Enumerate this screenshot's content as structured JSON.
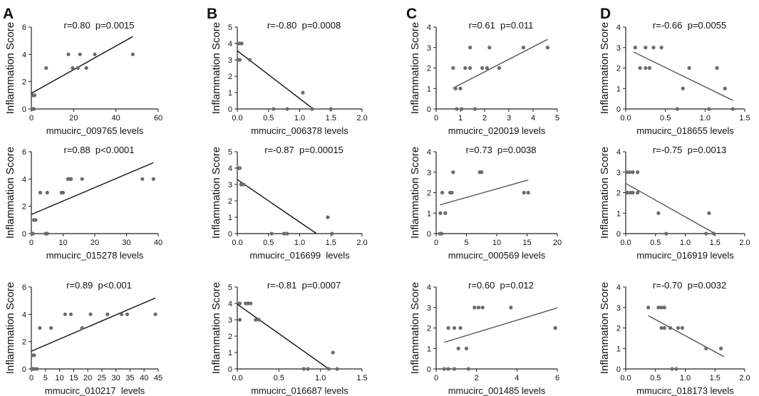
{
  "colors": {
    "point": "#6b6b6b",
    "line_dark": "#111111",
    "line_gray": "#555555",
    "axis": "#222222"
  },
  "panels": [
    {
      "letter": "A"
    },
    {
      "letter": "B"
    },
    {
      "letter": "C"
    },
    {
      "letter": "D"
    }
  ],
  "chart_data": [
    {
      "id": "A1",
      "column": 0,
      "row": 0,
      "type": "scatter",
      "ylabel": "Inflammation Score",
      "xlabel": "mmucirc_009765 levels",
      "stats": "r=0.80  p=0.0015",
      "xlim": [
        0,
        60
      ],
      "xticks": [
        "0",
        "20",
        "40",
        "60"
      ],
      "xtick_values": [
        0,
        20,
        40,
        60
      ],
      "ylim": [
        0,
        6
      ],
      "yticks": [
        "0",
        "2",
        "4",
        "6"
      ],
      "ytick_values": [
        0,
        2,
        4,
        6
      ],
      "points": [
        [
          0.3,
          0
        ],
        [
          0.6,
          0
        ],
        [
          1,
          0
        ],
        [
          1.2,
          0
        ],
        [
          0.5,
          1
        ],
        [
          1,
          1
        ],
        [
          1.5,
          1
        ],
        [
          7,
          3
        ],
        [
          17.5,
          4
        ],
        [
          19.5,
          3
        ],
        [
          22,
          3
        ],
        [
          23,
          4
        ],
        [
          26,
          3
        ],
        [
          30,
          4
        ],
        [
          48,
          4
        ]
      ],
      "fit": [
        [
          0,
          1.15
        ],
        [
          48,
          5.3
        ]
      ],
      "line_color": "#111111"
    },
    {
      "id": "A2",
      "column": 0,
      "row": 1,
      "type": "scatter",
      "ylabel": "Inflammation Score",
      "xlabel": "mmucirc_015278 levels",
      "stats": "r=0.88  p<0.0001",
      "xlim": [
        0,
        40
      ],
      "xticks": [
        "0",
        "10",
        "20",
        "30",
        "40"
      ],
      "xtick_values": [
        0,
        10,
        20,
        30,
        40
      ],
      "ylim": [
        0,
        6
      ],
      "yticks": [
        "0",
        "2",
        "4",
        "6"
      ],
      "ytick_values": [
        0,
        2,
        4,
        6
      ],
      "points": [
        [
          0.2,
          0
        ],
        [
          0.5,
          0
        ],
        [
          4.5,
          0
        ],
        [
          5,
          0
        ],
        [
          0.8,
          1
        ],
        [
          1.3,
          1
        ],
        [
          2.8,
          3
        ],
        [
          5,
          3
        ],
        [
          9.5,
          3
        ],
        [
          10,
          3
        ],
        [
          11.5,
          4
        ],
        [
          12,
          4
        ],
        [
          12.5,
          4
        ],
        [
          16,
          4
        ],
        [
          35,
          4
        ],
        [
          38.5,
          4
        ]
      ],
      "fit": [
        [
          0,
          1.4
        ],
        [
          38.5,
          5.2
        ]
      ],
      "line_color": "#111111"
    },
    {
      "id": "A3",
      "column": 0,
      "row": 2,
      "type": "scatter",
      "ylabel": "Inflammation Score",
      "xlabel": "mmucirc_010217  levels",
      "stats": "r=0.89  p<0.001",
      "xlim": [
        0,
        45
      ],
      "xticks": [
        "0",
        "5",
        "10",
        "15",
        "20",
        "25",
        "30",
        "35",
        "40",
        "45"
      ],
      "xtick_values": [
        0,
        5,
        10,
        15,
        20,
        25,
        30,
        35,
        40,
        45
      ],
      "ylim": [
        0,
        6
      ],
      "yticks": [
        "0",
        "2",
        "4",
        "6"
      ],
      "ytick_values": [
        0,
        2,
        4,
        6
      ],
      "points": [
        [
          0.2,
          0
        ],
        [
          0.6,
          0
        ],
        [
          1,
          0
        ],
        [
          2,
          0
        ],
        [
          0.5,
          1
        ],
        [
          1,
          1
        ],
        [
          3,
          3
        ],
        [
          7,
          3
        ],
        [
          12,
          4
        ],
        [
          14,
          4
        ],
        [
          18,
          3
        ],
        [
          21,
          4
        ],
        [
          27,
          4
        ],
        [
          32,
          4
        ],
        [
          34,
          4
        ],
        [
          44,
          4
        ]
      ],
      "fit": [
        [
          0,
          1.3
        ],
        [
          44,
          5.2
        ]
      ],
      "line_color": "#111111"
    },
    {
      "id": "B1",
      "column": 1,
      "row": 0,
      "type": "scatter",
      "ylabel": "Inflammation Score",
      "xlabel": "mmucirc_006378 levels",
      "stats": "r=-0.80  p=0.0008",
      "xlim": [
        0,
        2.0
      ],
      "xticks": [
        "0.0",
        "0.5",
        "1.0",
        "1.5",
        "2.0"
      ],
      "xtick_values": [
        0,
        0.5,
        1,
        1.5,
        2
      ],
      "ylim": [
        0,
        5
      ],
      "yticks": [
        "0",
        "1",
        "2",
        "3",
        "4",
        "5"
      ],
      "ytick_values": [
        0,
        1,
        2,
        3,
        4,
        5
      ],
      "points": [
        [
          0.01,
          4
        ],
        [
          0.04,
          4
        ],
        [
          0.07,
          4
        ],
        [
          0.01,
          3
        ],
        [
          0.04,
          3
        ],
        [
          0.2,
          3
        ],
        [
          0.58,
          0
        ],
        [
          0.8,
          0
        ],
        [
          1.05,
          1
        ],
        [
          1.2,
          0
        ],
        [
          1.5,
          0
        ]
      ],
      "fit": [
        [
          0,
          3.55
        ],
        [
          1.2,
          0.05
        ]
      ],
      "line_color": "#111111"
    },
    {
      "id": "B2",
      "column": 1,
      "row": 1,
      "type": "scatter",
      "ylabel": "Inflammation Score",
      "xlabel": "mmucirc_016699  levels",
      "stats": "r=-0.87  p=0.00015",
      "xlim": [
        0,
        2.0
      ],
      "xticks": [
        "0.0",
        "0.5",
        "1.0",
        "1.5",
        "2.0"
      ],
      "xtick_values": [
        0,
        0.5,
        1,
        1.5,
        2
      ],
      "ylim": [
        0,
        5
      ],
      "yticks": [
        "0",
        "1",
        "2",
        "3",
        "4",
        "5"
      ],
      "ytick_values": [
        0,
        1,
        2,
        3,
        4,
        5
      ],
      "points": [
        [
          0.01,
          4
        ],
        [
          0.04,
          4
        ],
        [
          0.06,
          3
        ],
        [
          0.1,
          3
        ],
        [
          0.55,
          0
        ],
        [
          0.75,
          0
        ],
        [
          0.8,
          0
        ],
        [
          1.45,
          1
        ],
        [
          1.52,
          0
        ]
      ],
      "fit": [
        [
          0,
          3.3
        ],
        [
          1.27,
          0
        ]
      ],
      "line_color": "#111111"
    },
    {
      "id": "B3",
      "column": 1,
      "row": 2,
      "type": "scatter",
      "ylabel": "Inflammation Score",
      "xlabel": "mmucirc_016687 levels",
      "stats": "r=-0.81  p=0.0007",
      "xlim": [
        0,
        1.5
      ],
      "xticks": [
        "0.0",
        "0.5",
        "1.0",
        "1.5"
      ],
      "xtick_values": [
        0,
        0.5,
        1,
        1.5
      ],
      "ylim": [
        0,
        5
      ],
      "yticks": [
        "0",
        "1",
        "2",
        "3",
        "4",
        "5"
      ],
      "ytick_values": [
        0,
        1,
        2,
        3,
        4,
        5
      ],
      "points": [
        [
          0.03,
          4
        ],
        [
          0.1,
          4
        ],
        [
          0.13,
          4
        ],
        [
          0.16,
          4
        ],
        [
          0.03,
          3
        ],
        [
          0.22,
          3
        ],
        [
          0.26,
          3
        ],
        [
          0.8,
          0
        ],
        [
          0.85,
          0
        ],
        [
          1.1,
          0
        ],
        [
          1.15,
          1
        ],
        [
          1.2,
          0
        ]
      ],
      "fit": [
        [
          0,
          3.95
        ],
        [
          1.1,
          0
        ]
      ],
      "line_color": "#111111"
    },
    {
      "id": "C1",
      "column": 2,
      "row": 0,
      "type": "scatter",
      "ylabel": "Inflammation Score",
      "xlabel": "mmucirc_020019 levels",
      "stats": "r=0.61  p=0.011",
      "xlim": [
        0,
        5
      ],
      "xticks": [
        "0",
        "1",
        "2",
        "3",
        "4",
        "5"
      ],
      "xtick_values": [
        0,
        1,
        2,
        3,
        4,
        5
      ],
      "ylim": [
        0,
        4
      ],
      "yticks": [
        "0",
        "1",
        "2",
        "3",
        "4"
      ],
      "ytick_values": [
        0,
        1,
        2,
        3,
        4
      ],
      "points": [
        [
          0.7,
          2
        ],
        [
          0.8,
          1
        ],
        [
          1,
          1
        ],
        [
          0.85,
          0
        ],
        [
          1.05,
          0
        ],
        [
          1.2,
          2
        ],
        [
          1.4,
          3
        ],
        [
          1.4,
          2
        ],
        [
          1.6,
          0
        ],
        [
          1.9,
          2
        ],
        [
          2.1,
          2
        ],
        [
          2.2,
          3
        ],
        [
          2.6,
          2
        ],
        [
          3.6,
          3
        ],
        [
          4.6,
          3
        ]
      ],
      "fit": [
        [
          0.7,
          1.02
        ],
        [
          4.6,
          3.4
        ]
      ],
      "line_color": "#555555"
    },
    {
      "id": "C2",
      "column": 2,
      "row": 1,
      "type": "scatter",
      "ylabel": "Inflammation Score",
      "xlabel": "mmucirc_000569 levels",
      "stats": "r=0.73  p=0.0038",
      "xlim": [
        0,
        20
      ],
      "xticks": [
        "0",
        "5",
        "10",
        "15",
        "20"
      ],
      "xtick_values": [
        0,
        5,
        10,
        15,
        20
      ],
      "ylim": [
        0,
        4
      ],
      "yticks": [
        "0",
        "1",
        "2",
        "3",
        "4"
      ],
      "ytick_values": [
        0,
        1,
        2,
        3,
        4
      ],
      "points": [
        [
          0.6,
          0
        ],
        [
          0.9,
          0
        ],
        [
          0.7,
          1
        ],
        [
          1.5,
          1
        ],
        [
          1,
          2
        ],
        [
          2.3,
          2
        ],
        [
          2.6,
          2
        ],
        [
          2.8,
          3
        ],
        [
          7.2,
          3
        ],
        [
          7.5,
          3
        ],
        [
          14.5,
          2
        ],
        [
          15.2,
          2
        ]
      ],
      "fit": [
        [
          0.6,
          1.4
        ],
        [
          15.2,
          2.62
        ]
      ],
      "line_color": "#555555"
    },
    {
      "id": "C3",
      "column": 2,
      "row": 2,
      "type": "scatter",
      "ylabel": "Inflammation Score",
      "xlabel": "mmucirc_001485 levels",
      "stats": "r=0.60  p=0.012",
      "xlim": [
        0,
        6
      ],
      "xticks": [
        "0",
        "2",
        "4",
        "6"
      ],
      "xtick_values": [
        0,
        2,
        4,
        6
      ],
      "ylim": [
        0,
        4
      ],
      "yticks": [
        "0",
        "1",
        "2",
        "3",
        "4"
      ],
      "ytick_values": [
        0,
        1,
        2,
        3,
        4
      ],
      "points": [
        [
          0.4,
          0
        ],
        [
          0.6,
          0
        ],
        [
          0.9,
          0
        ],
        [
          0.6,
          2
        ],
        [
          0.9,
          2
        ],
        [
          1.2,
          2
        ],
        [
          1.1,
          1
        ],
        [
          1.5,
          1
        ],
        [
          1.6,
          0
        ],
        [
          1.9,
          3
        ],
        [
          2.1,
          3
        ],
        [
          2.3,
          3
        ],
        [
          3.7,
          3
        ],
        [
          5.9,
          2
        ]
      ],
      "fit": [
        [
          0.4,
          1.3
        ],
        [
          6,
          2.98
        ]
      ],
      "line_color": "#555555"
    },
    {
      "id": "D1",
      "column": 3,
      "row": 0,
      "type": "scatter",
      "ylabel": "Inflammation Score",
      "xlabel": "mmucirc_018655 levels",
      "stats": "r=-0.66  p=0.0055",
      "xlim": [
        0,
        1.5
      ],
      "xticks": [
        "0.0",
        "0.5",
        "1.0",
        "1.5"
      ],
      "xtick_values": [
        0,
        0.5,
        1,
        1.5
      ],
      "ylim": [
        0,
        4
      ],
      "yticks": [
        "0",
        "1",
        "2",
        "3",
        "4"
      ],
      "ytick_values": [
        0,
        1,
        2,
        3,
        4
      ],
      "points": [
        [
          0.12,
          3
        ],
        [
          0.25,
          3
        ],
        [
          0.35,
          3
        ],
        [
          0.45,
          3
        ],
        [
          0.18,
          2
        ],
        [
          0.25,
          2
        ],
        [
          0.3,
          2
        ],
        [
          0.65,
          0
        ],
        [
          0.72,
          1
        ],
        [
          0.8,
          2
        ],
        [
          1.05,
          0
        ],
        [
          1.15,
          2
        ],
        [
          1.25,
          1
        ],
        [
          1.35,
          0
        ]
      ],
      "fit": [
        [
          0.1,
          2.78
        ],
        [
          1.35,
          0.42
        ]
      ],
      "line_color": "#555555"
    },
    {
      "id": "D2",
      "column": 3,
      "row": 1,
      "type": "scatter",
      "ylabel": "Inflammation Score",
      "xlabel": "mmucirc_016919 levels",
      "stats": "r=-0.75  p=0.0013",
      "xlim": [
        0,
        2.0
      ],
      "xticks": [
        "0.0",
        "0.5",
        "1.0",
        "1.5",
        "2.0"
      ],
      "xtick_values": [
        0,
        0.5,
        1,
        1.5,
        2
      ],
      "ylim": [
        0,
        4
      ],
      "yticks": [
        "0",
        "1",
        "2",
        "3",
        "4"
      ],
      "ytick_values": [
        0,
        1,
        2,
        3,
        4
      ],
      "points": [
        [
          0.02,
          3
        ],
        [
          0.07,
          3
        ],
        [
          0.12,
          3
        ],
        [
          0.2,
          3
        ],
        [
          0.03,
          2
        ],
        [
          0.08,
          2
        ],
        [
          0.12,
          2
        ],
        [
          0.2,
          2
        ],
        [
          0.55,
          1
        ],
        [
          0.68,
          0
        ],
        [
          1.35,
          0
        ],
        [
          1.4,
          1
        ],
        [
          1.48,
          0
        ]
      ],
      "fit": [
        [
          0,
          2.45
        ],
        [
          1.5,
          0
        ]
      ],
      "line_color": "#555555"
    },
    {
      "id": "D3",
      "column": 3,
      "row": 2,
      "type": "scatter",
      "ylabel": "Inflammation Score",
      "xlabel": "mmucirc_018173 levels",
      "stats": "r=-0.70  p=0.0032",
      "xlim": [
        0,
        2.0
      ],
      "xticks": [
        "0.0",
        "0.5",
        "1.0",
        "1.5",
        "2.0"
      ],
      "xtick_values": [
        0,
        0.5,
        1,
        1.5,
        2
      ],
      "ylim": [
        0,
        4
      ],
      "yticks": [
        "0",
        "1",
        "2",
        "3",
        "4"
      ],
      "ytick_values": [
        0,
        1,
        2,
        3,
        4
      ],
      "points": [
        [
          0.38,
          3
        ],
        [
          0.55,
          3
        ],
        [
          0.6,
          3
        ],
        [
          0.65,
          3
        ],
        [
          0.6,
          2
        ],
        [
          0.65,
          2
        ],
        [
          0.75,
          2
        ],
        [
          0.88,
          2
        ],
        [
          0.95,
          2
        ],
        [
          0.78,
          0
        ],
        [
          0.85,
          0
        ],
        [
          1.35,
          1
        ],
        [
          1.6,
          1
        ]
      ],
      "fit": [
        [
          0.38,
          2.6
        ],
        [
          1.65,
          0.6
        ]
      ],
      "line_color": "#555555"
    }
  ]
}
